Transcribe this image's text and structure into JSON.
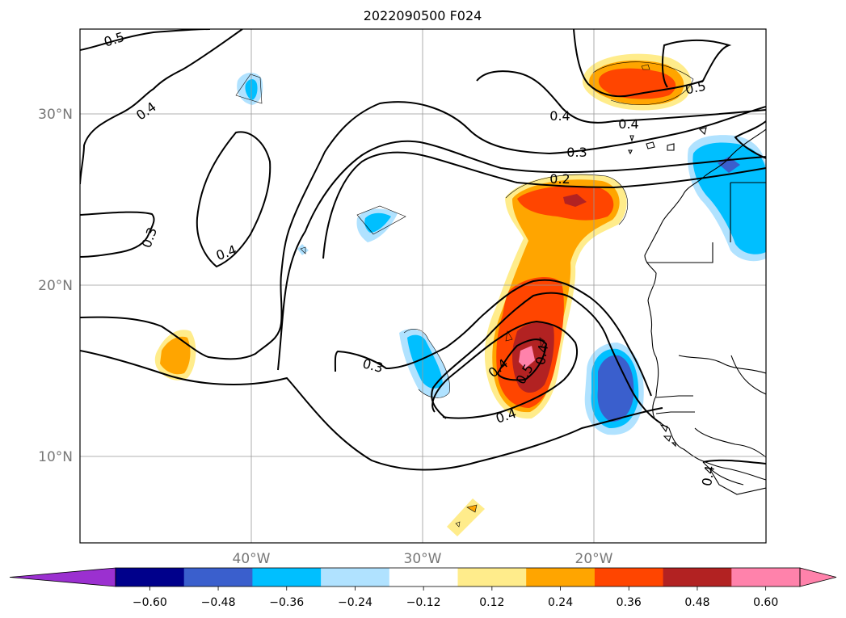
{
  "map": {
    "title": "2022090500 F024",
    "lat_labels": [
      "30°N",
      "20°N",
      "10°N"
    ],
    "lon_labels": [
      "40°W",
      "30°W",
      "20°W"
    ],
    "contour_labels": [
      "0.5",
      "0.4",
      "0.4",
      "0.3",
      "0.4",
      "0.4",
      "0.4",
      "0.3",
      "0.2",
      "0.5",
      "0.3",
      "0.4",
      "0.4",
      "0.5",
      "0.4"
    ]
  },
  "colorbar": {
    "ticks": [
      "−0.60",
      "−0.48",
      "−0.36",
      "−0.24",
      "−0.12",
      "0.12",
      "0.24",
      "0.36",
      "0.48",
      "0.60"
    ],
    "colors": [
      "#9b30d0",
      "#00008b",
      "#3a5fcd",
      "#00bfff",
      "#b0e2ff",
      "#ffffff",
      "#ffec8b",
      "#ffa500",
      "#ff4500",
      "#b22222",
      "#ff82ab",
      "#ff82ab"
    ]
  }
}
